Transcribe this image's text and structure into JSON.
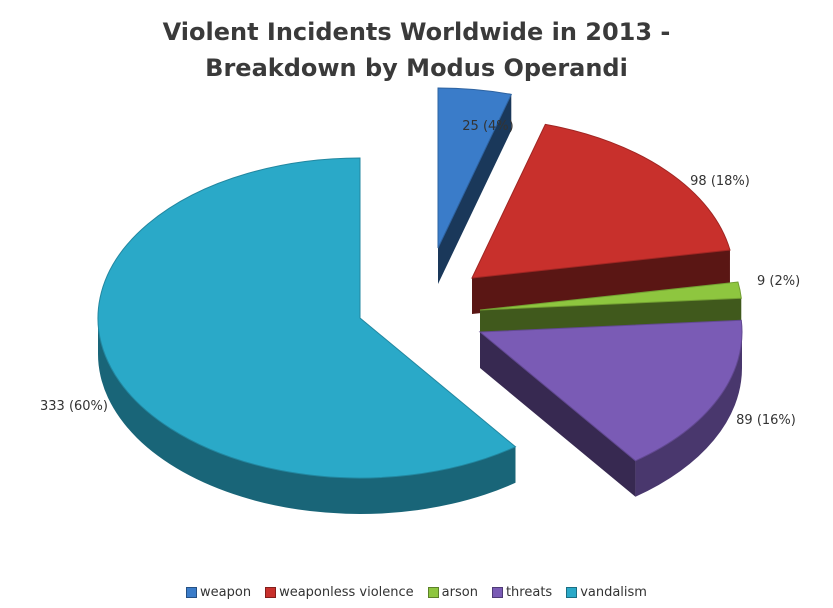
{
  "chart_data": {
    "type": "pie",
    "title": "Violent Incidents Worldwide in 2013 -",
    "subtitle": "Breakdown by Modus Operandi",
    "categories": [
      "weapon",
      "weaponless violence",
      "arson",
      "threats",
      "vandalism"
    ],
    "values": [
      25,
      98,
      9,
      89,
      333
    ],
    "data_labels": [
      "25 (4%)",
      "98 (18%)",
      "9 (2%)",
      "89 (16%)",
      "333 (60%)"
    ],
    "colors": [
      "#3a7cc9",
      "#c8302c",
      "#8ec63f",
      "#7a5bb5",
      "#2aa9c8"
    ],
    "exploded": true,
    "three_d": true,
    "legend_position": "bottom"
  }
}
